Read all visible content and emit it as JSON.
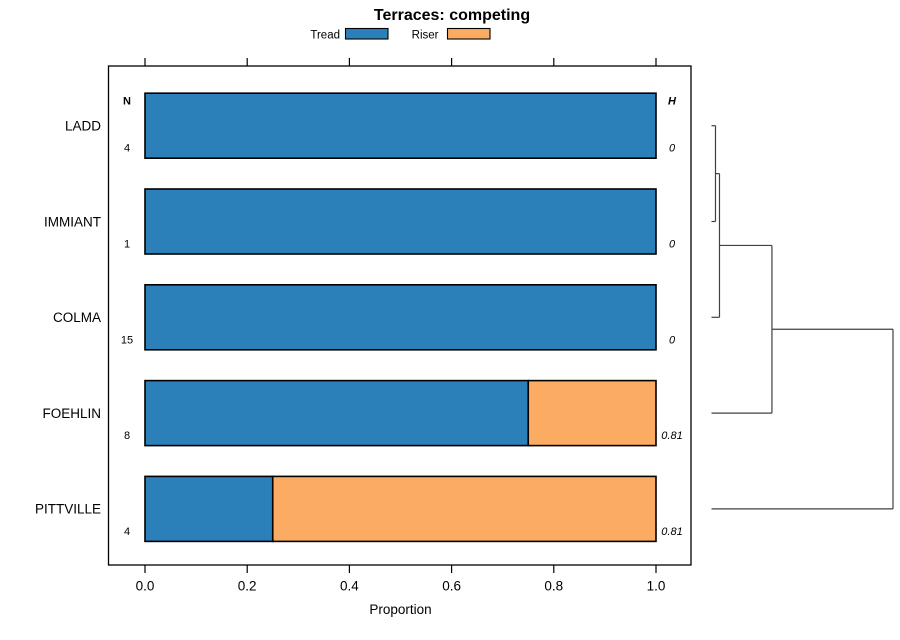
{
  "chart_data": {
    "type": "bar",
    "orientation": "horizontal",
    "stacked": true,
    "title": "Terraces: competing",
    "xlabel": "Proportion",
    "xlim": [
      0,
      1
    ],
    "xticks": [
      "0.0",
      "0.2",
      "0.4",
      "0.6",
      "0.8",
      "1.0"
    ],
    "xtick_values": [
      0,
      0.2,
      0.4,
      0.6,
      0.8,
      1.0
    ],
    "categories": [
      "LADD",
      "IMMIANT",
      "COLMA",
      "FOEHLIN",
      "PITTVILLE"
    ],
    "series": [
      {
        "name": "Tread",
        "color": "#2C80B9",
        "values": [
          1.0,
          1.0,
          1.0,
          0.75,
          0.25
        ]
      },
      {
        "name": "Riser",
        "color": "#FBAC62",
        "values": [
          0,
          0,
          0,
          0.25,
          0.75
        ]
      }
    ],
    "columns": {
      "left": {
        "header": "N",
        "values": [
          "4",
          "1",
          "15",
          "8",
          "4"
        ]
      },
      "right": {
        "header": "H",
        "values": [
          "0",
          "0",
          "0",
          "0.81",
          "0.81"
        ]
      }
    },
    "legend": {
      "position": "top-center",
      "entries": [
        "Tread",
        "Riser"
      ]
    },
    "dendrogram": {
      "leaves": [
        "LADD",
        "IMMIANT",
        "COLMA",
        "FOEHLIN",
        "PITTVILLE"
      ],
      "merges": [
        {
          "children": [
            "LADD",
            "IMMIANT"
          ],
          "height": 0.022
        },
        {
          "children": [
            "merge-0",
            "COLMA"
          ],
          "height": 0.044
        },
        {
          "children": [
            "merge-1",
            "FOEHLIN"
          ],
          "height": 0.333
        },
        {
          "children": [
            "merge-2",
            "PITTVILLE"
          ],
          "height": 1.0
        }
      ]
    },
    "grid": false,
    "bar_border_color": "#000000",
    "dendrogram_color": "#404040"
  }
}
